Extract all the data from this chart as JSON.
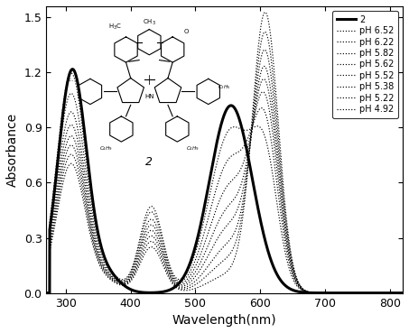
{
  "xlabel": "Wavelength(nm)",
  "ylabel": "Absorbance",
  "xlim": [
    270,
    820
  ],
  "ylim": [
    0.0,
    1.56
  ],
  "yticks": [
    0.0,
    0.3,
    0.6,
    0.9,
    1.2,
    1.5
  ],
  "xticks": [
    300,
    400,
    500,
    600,
    700,
    800
  ],
  "solid": {
    "label": "2",
    "linewidth": 2.2,
    "color": "#000000",
    "p1c": 310,
    "p1a": 1.21,
    "p1w": 22,
    "p2c": 555,
    "p2a": 1.02,
    "p2w": 33
  },
  "ph_series": [
    {
      "label": "pH 6.52",
      "p1a": 1.19,
      "p1c": 308,
      "p1w": 22,
      "p2a": 0.47,
      "p2c": 432,
      "p2w": 18,
      "p3a": 0.88,
      "p3c": 555,
      "p3w": 33,
      "p4a": 0.6,
      "p4c": 608,
      "p4w": 20
    },
    {
      "label": "pH 6.22",
      "p1a": 1.08,
      "p1c": 308,
      "p1w": 22,
      "p2a": 0.44,
      "p2c": 432,
      "p2w": 18,
      "p3a": 0.72,
      "p3c": 555,
      "p3w": 33,
      "p4a": 0.78,
      "p4c": 608,
      "p4w": 20
    },
    {
      "label": "pH 5.82",
      "p1a": 0.98,
      "p1c": 308,
      "p1w": 22,
      "p2a": 0.4,
      "p2c": 432,
      "p2w": 18,
      "p3a": 0.58,
      "p3c": 555,
      "p3w": 33,
      "p4a": 0.92,
      "p4c": 608,
      "p4w": 20
    },
    {
      "label": "pH 5.62",
      "p1a": 0.91,
      "p1c": 308,
      "p1w": 22,
      "p2a": 0.37,
      "p2c": 432,
      "p2w": 18,
      "p3a": 0.46,
      "p3c": 555,
      "p3w": 33,
      "p4a": 1.03,
      "p4c": 608,
      "p4w": 20
    },
    {
      "label": "pH 5.52",
      "p1a": 0.85,
      "p1c": 308,
      "p1w": 22,
      "p2a": 0.34,
      "p2c": 432,
      "p2w": 18,
      "p3a": 0.36,
      "p3c": 555,
      "p3w": 33,
      "p4a": 1.13,
      "p4c": 608,
      "p4w": 20
    },
    {
      "label": "pH 5.38",
      "p1a": 0.8,
      "p1c": 308,
      "p1w": 22,
      "p2a": 0.31,
      "p2c": 432,
      "p2w": 18,
      "p3a": 0.26,
      "p3c": 555,
      "p3w": 33,
      "p4a": 1.25,
      "p4c": 608,
      "p4w": 20
    },
    {
      "label": "pH 5.22",
      "p1a": 0.75,
      "p1c": 308,
      "p1w": 22,
      "p2a": 0.28,
      "p2c": 432,
      "p2w": 18,
      "p3a": 0.18,
      "p3c": 555,
      "p3w": 33,
      "p4a": 1.37,
      "p4c": 608,
      "p4w": 20
    },
    {
      "label": "pH 4.92",
      "p1a": 0.7,
      "p1c": 308,
      "p1w": 22,
      "p2a": 0.25,
      "p2c": 432,
      "p2w": 18,
      "p3a": 0.1,
      "p3c": 555,
      "p3w": 33,
      "p4a": 1.5,
      "p4c": 608,
      "p4w": 20
    }
  ]
}
